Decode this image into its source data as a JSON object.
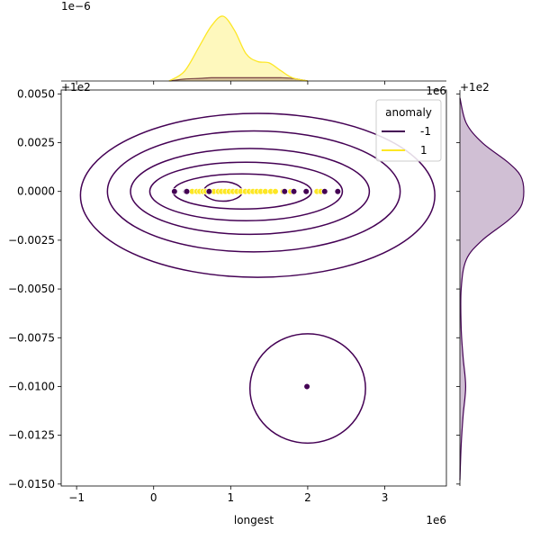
{
  "chart_data": {
    "type": "scatter",
    "title": "",
    "xlabel": "longest",
    "ylabel": "",
    "x_offset_text": "1e6",
    "x_offset_text_top": "1e6",
    "y_offset_text": "+1e2",
    "y_offset_text_marg": "+1e2",
    "top_marginal_offset_text": "1e−6",
    "xlim": [
      -1.2,
      3.8
    ],
    "ylim": [
      -0.0151,
      0.0052
    ],
    "xticks": [
      -1,
      0,
      1,
      2,
      3
    ],
    "xtick_labels": [
      "−1",
      "0",
      "1",
      "2",
      "3"
    ],
    "yticks": [
      0.005,
      0.0025,
      0.0,
      -0.0025,
      -0.005,
      -0.0075,
      -0.01,
      -0.0125,
      -0.015
    ],
    "ytick_labels": [
      "0.0050",
      "0.0025",
      "0.0000",
      "−0.0025",
      "−0.0050",
      "−0.0075",
      "−0.0100",
      "−0.0125",
      "−0.0150"
    ],
    "legend": {
      "title": "anomaly",
      "placement": "top-right",
      "entries": [
        {
          "label": "-1",
          "color": "#440154"
        },
        {
          "label": "1",
          "color": "#fde725"
        }
      ]
    },
    "series": [
      {
        "name": "-1",
        "color": "#440154",
        "points": [
          [
            0.27,
            0.0
          ],
          [
            0.42,
            0.0
          ],
          [
            0.43,
            0.0
          ],
          [
            0.72,
            0.0
          ],
          [
            1.7,
            0.0
          ],
          [
            1.82,
            0.0
          ],
          [
            1.98,
            0.0
          ],
          [
            2.22,
            0.0
          ],
          [
            2.39,
            0.0
          ],
          [
            1.99,
            -0.01
          ]
        ]
      },
      {
        "name": "1",
        "color": "#fde725",
        "points": [
          [
            0.5,
            0.0
          ],
          [
            0.56,
            0.0
          ],
          [
            0.6,
            0.0
          ],
          [
            0.64,
            0.0
          ],
          [
            0.68,
            0.0
          ],
          [
            0.78,
            0.0
          ],
          [
            0.84,
            0.0
          ],
          [
            0.88,
            0.0
          ],
          [
            0.93,
            0.0
          ],
          [
            0.98,
            0.0
          ],
          [
            1.03,
            0.0
          ],
          [
            1.08,
            0.0
          ],
          [
            1.13,
            0.0
          ],
          [
            1.19,
            0.0
          ],
          [
            1.24,
            0.0
          ],
          [
            1.29,
            0.0
          ],
          [
            1.34,
            0.0
          ],
          [
            1.39,
            0.0
          ],
          [
            1.45,
            0.0
          ],
          [
            1.52,
            0.0
          ],
          [
            1.58,
            0.0
          ],
          [
            1.68,
            0.0
          ],
          [
            1.78,
            0.0
          ],
          [
            2.12,
            0.0
          ],
          [
            2.17,
            0.0
          ]
        ]
      }
    ],
    "contours_class_-1": [
      {
        "cx": 0.9,
        "cy": 0.0,
        "rx": 0.25,
        "ry": 0.0005
      },
      {
        "cx": 1.15,
        "cy": 0.0,
        "rx": 0.9,
        "ry": 0.0009
      },
      {
        "cx": 1.2,
        "cy": 0.0,
        "rx": 1.25,
        "ry": 0.0015
      },
      {
        "cx": 1.25,
        "cy": 0.0,
        "rx": 1.55,
        "ry": 0.0022
      },
      {
        "cx": 1.3,
        "cy": 0.0,
        "rx": 1.9,
        "ry": 0.0031
      },
      {
        "cx": 1.35,
        "cy": -0.0002,
        "rx": 2.3,
        "ry": 0.0042
      },
      {
        "cx": 2.0,
        "cy": -0.0101,
        "rx": 0.75,
        "ry": 0.0028
      }
    ],
    "top_marginal": {
      "x": [
        0.2,
        0.4,
        0.6,
        0.75,
        0.9,
        1.05,
        1.2,
        1.35,
        1.5,
        1.65,
        1.8,
        2.0
      ],
      "density_class_1": [
        0.0,
        0.15,
        0.55,
        0.85,
        1.0,
        0.78,
        0.42,
        0.3,
        0.28,
        0.16,
        0.05,
        0.0
      ],
      "density_class_-1": [
        0.0,
        0.03,
        0.04,
        0.05,
        0.05,
        0.05,
        0.05,
        0.05,
        0.05,
        0.05,
        0.04,
        0.0
      ]
    },
    "right_marginal": {
      "y": [
        0.0048,
        0.0035,
        0.0025,
        0.0015,
        0.0008,
        0.0,
        -0.0008,
        -0.0015,
        -0.0025,
        -0.0035,
        -0.005,
        -0.007,
        -0.0085,
        -0.01,
        -0.0115,
        -0.013,
        -0.0148
      ],
      "density_class_-1": [
        0.0,
        0.1,
        0.35,
        0.75,
        0.95,
        1.0,
        0.95,
        0.75,
        0.35,
        0.1,
        0.02,
        0.02,
        0.05,
        0.09,
        0.05,
        0.02,
        0.0
      ]
    }
  }
}
